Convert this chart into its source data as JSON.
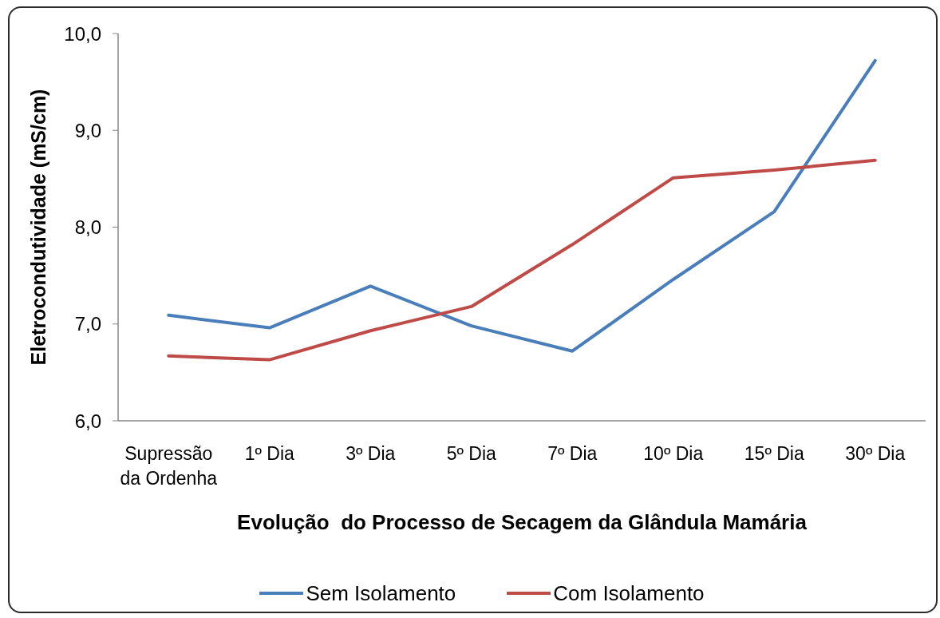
{
  "chart_data": {
    "type": "line",
    "xlabel": "Evolução  do Processo de Secagem da Glândula Mamária",
    "ylabel": "Eletrocondutividade (mS/cm)",
    "categories": [
      "Supressão da Ordenha",
      "1º Dia",
      "3º Dia",
      "5º Dia",
      "7º Dia",
      "10º Dia",
      "15º Dia",
      "30º Dia"
    ],
    "series": [
      {
        "name": "Sem Isolamento",
        "color": "#4a7ebb",
        "values": [
          7.09,
          6.96,
          7.39,
          6.98,
          6.72,
          7.46,
          8.16,
          9.72
        ]
      },
      {
        "name": "Com Isolamento",
        "color": "#be4b48",
        "values": [
          6.67,
          6.63,
          6.93,
          7.18,
          7.82,
          8.51,
          8.59,
          8.69
        ]
      }
    ],
    "ylim": [
      6,
      10
    ],
    "yticks": [
      {
        "value": 6,
        "label": "6,0"
      },
      {
        "value": 7,
        "label": "7,0"
      },
      {
        "value": 8,
        "label": "8,0"
      },
      {
        "value": 9,
        "label": "9,0"
      },
      {
        "value": 10,
        "label": "10,0"
      }
    ],
    "legend": "bottom",
    "marker": "none",
    "line_style": "solid"
  }
}
